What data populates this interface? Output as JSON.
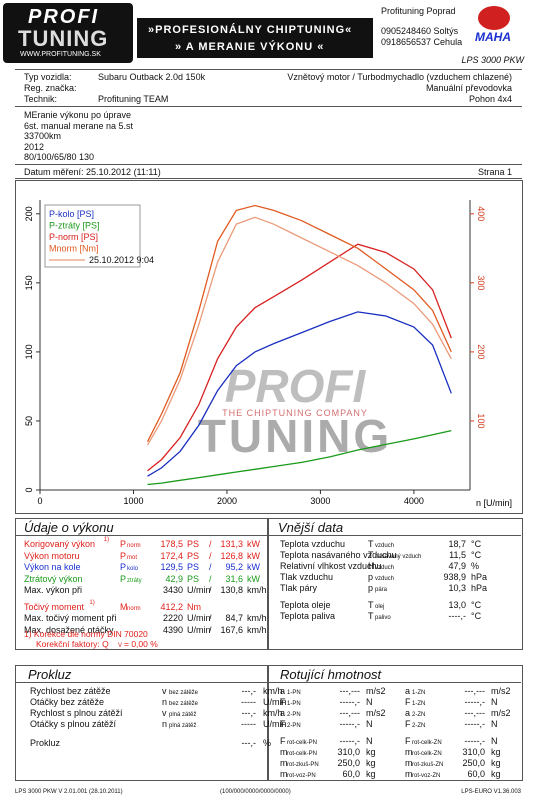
{
  "header": {
    "logo": [
      "PROFI",
      "TUNING",
      "WWW.PROFITUNING.SK"
    ],
    "banner": [
      "»PROFESIONÁLNY CHIPTUNING«",
      "» A MERANIE VÝKONU «"
    ],
    "company": [
      "Profituning Poprad",
      "0905248460 Soltýs",
      "0918656537 Cehula"
    ],
    "brand": "MAHA",
    "device": "LPS 3000 PKW"
  },
  "info": {
    "rows": [
      {
        "label": "Typ vozidla:",
        "value": "Subaru Outback 2.0d 150k",
        "right": "Vznětový motor / Turbodmychadlo (vzduchem chlazené)"
      },
      {
        "label": "Reg. značka:",
        "right": "Manuální převodovka"
      },
      {
        "label": "Technik:",
        "value": "Profituning TEAM",
        "right": "Pohon 4x4"
      }
    ],
    "notes": [
      "MEranie výkonu po úprave",
      "6st. manual merane na 5.st",
      "33700km",
      "2012",
      "80/100/65/80 130"
    ],
    "date": "Datum měření: 25.10.2012 (11:11)",
    "page": "Strana 1"
  },
  "watermark": [
    "PROFI",
    "THE CHIPTUNING COMPANY",
    "TUNING"
  ],
  "chart_data": {
    "type": "line",
    "xlabel": "n [U/min]",
    "x": [
      1150,
      1300,
      1500,
      1700,
      1900,
      2100,
      2300,
      2500,
      2800,
      3100,
      3400,
      3700,
      4000,
      4200,
      4400
    ],
    "series": [
      {
        "name": "P-kolo [PS]",
        "color": "#1a2fc0",
        "values": [
          10,
          16,
          28,
          47,
          72,
          90,
          100,
          106,
          114,
          122,
          129,
          126,
          118,
          105,
          70
        ]
      },
      {
        "name": "P-ztráty [PS]",
        "color": "#1a9a1a",
        "values": [
          4,
          5,
          7,
          9,
          11,
          13,
          15,
          17,
          20,
          24,
          29,
          33,
          37,
          40,
          43
        ]
      },
      {
        "name": "P-norm [PS]",
        "color": "#d82020",
        "values": [
          14,
          22,
          38,
          62,
          95,
          118,
          132,
          140,
          152,
          165,
          178,
          172,
          160,
          145,
          110
        ]
      },
      {
        "name": "Mnorm [Nm]",
        "color": "#e05a20",
        "axis": "y2",
        "values": [
          70,
          110,
          170,
          260,
          360,
          405,
          412,
          405,
          390,
          370,
          350,
          320,
          290,
          260,
          200
        ]
      },
      {
        "name": "25.10.2012 9:04",
        "color": "#eb9a7a",
        "axis": "y2",
        "values": [
          65,
          100,
          160,
          240,
          330,
          385,
          395,
          385,
          365,
          345,
          325,
          300,
          270,
          240,
          190
        ]
      }
    ],
    "xlim": [
      0,
      4600
    ],
    "xticks": [
      0,
      1000,
      2000,
      3000,
      4000
    ],
    "ylim": [
      0,
      210
    ],
    "yticks": [
      0,
      50,
      100,
      150,
      200
    ],
    "y2lim": [
      0,
      420
    ],
    "y2ticks": [
      100,
      200,
      300,
      400
    ],
    "grid": false,
    "legend": "top-left"
  },
  "performance": {
    "title": "Údaje o výkonu",
    "separator": "/",
    "rows": [
      {
        "label": "Korigovaný výkon",
        "note": "1)",
        "sym": "P",
        "sub": "norm",
        "v1": "178,5",
        "u1": "PS",
        "v2": "131,3",
        "u2": "kW",
        "color": "#e0201a"
      },
      {
        "label": "Výkon motoru",
        "sym": "P",
        "sub": "mot",
        "v1": "172,4",
        "u1": "PS",
        "v2": "126,8",
        "u2": "kW",
        "color": "#e0201a"
      },
      {
        "label": "Výkon na kole",
        "sym": "P",
        "sub": "kolo",
        "v1": "129,5",
        "u1": "PS",
        "v2": "95,2",
        "u2": "kW",
        "color": "#1a2fd0"
      },
      {
        "label": "Ztrátový výkon",
        "sym": "P",
        "sub": "ztráty",
        "v1": "42,9",
        "u1": "PS",
        "v2": "31,6",
        "u2": "kW",
        "color": "#1a9a1a"
      },
      {
        "label": "Max. výkon při",
        "v1": "3430",
        "u1": "U/min",
        "v2": "130,8",
        "u2": "km/h",
        "color": "#111"
      },
      {
        "label": "Točivý moment",
        "note": "1)",
        "sym": "M",
        "sub": "norm",
        "v1": "412,2",
        "u1": "Nm",
        "color": "#e0201a"
      },
      {
        "label": "Max. točivý moment při",
        "v1": "2220",
        "u1": "U/min",
        "v2": "84,7",
        "u2": "km/h",
        "color": "#111"
      },
      {
        "label": "Max. dosažené otáčky",
        "v1": "4390",
        "u1": "U/min",
        "v2": "167,6",
        "u2": "km/h",
        "color": "#111"
      }
    ],
    "footnotes": [
      "1) Korekce dle normy DIN 70020",
      "Korekční faktory: Q",
      "V",
      "= 0,00 %"
    ]
  },
  "external": {
    "title": "Vnější data",
    "groups": [
      [
        {
          "label": "Teplota vzduchu",
          "sym": "T",
          "sub": "vzduch",
          "value": "18,7",
          "unit": "°C"
        },
        {
          "label": "Teplota nasávaného vzduchu",
          "sym": "T",
          "sub": "nasávaný vzduch",
          "value": "11,5",
          "unit": "°C"
        },
        {
          "label": "Relativní vlhkost vzduchu",
          "sym": "H",
          "sub": "vzduch",
          "value": "47,9",
          "unit": "%"
        },
        {
          "label": "Tlak vzduchu",
          "sym": "p",
          "sub": "vzduch",
          "value": "938,9",
          "unit": "hPa"
        },
        {
          "label": "Tlak páry",
          "sym": "p",
          "sub": "pára",
          "value": "10,3",
          "unit": "hPa"
        }
      ],
      [
        {
          "label": "Teplota oleje",
          "sym": "T",
          "sub": "olej",
          "value": "13,0",
          "unit": "°C"
        },
        {
          "label": "Teplota paliva",
          "sym": "T",
          "sub": "palivo",
          "value": "----,-",
          "unit": "°C"
        }
      ]
    ]
  },
  "slip": {
    "title": "Prokluz",
    "rows": [
      {
        "label": "Rychlost bez zátěže",
        "sym": "v",
        "sub": "bez zátěže",
        "value": "---,-",
        "unit": "km/h"
      },
      {
        "label": "Otáčky bez zátěže",
        "sym": "n",
        "sub": "bez zátěže",
        "value": "-----",
        "unit": "U/min"
      },
      {
        "label": "Rychlost s plnou zátěží",
        "sym": "v",
        "sub": "plná zátěž",
        "value": "---,-",
        "unit": "km/h"
      },
      {
        "label": "Otáčky s plnou zátěží",
        "sym": "n",
        "sub": "plná zátěž",
        "value": "-----",
        "unit": "U/min"
      },
      {
        "label": "Prokluz",
        "value": "---,-",
        "unit": "%"
      }
    ]
  },
  "rotating": {
    "title": "Rotující hmotnost",
    "rows": [
      [
        {
          "sym": "a",
          "sub": "1-PN",
          "value": "---,---",
          "unit": "m/s2"
        },
        {
          "sym": "a",
          "sub": "1-ZN",
          "value": "---,---",
          "unit": "m/s2"
        }
      ],
      [
        {
          "sym": "F",
          "sub": "1-PN",
          "value": "-----,-",
          "unit": "N"
        },
        {
          "sym": "F",
          "sub": "1-ZN",
          "value": "-----,-",
          "unit": "N"
        }
      ],
      [
        {
          "sym": "a",
          "sub": "2-PN",
          "value": "---,---",
          "unit": "m/s2"
        },
        {
          "sym": "a",
          "sub": "2-ZN",
          "value": "---,---",
          "unit": "m/s2"
        }
      ],
      [
        {
          "sym": "F",
          "sub": "2-PN",
          "value": "-----,-",
          "unit": "N"
        },
        {
          "sym": "F",
          "sub": "2-ZN",
          "value": "-----,-",
          "unit": "N"
        }
      ],
      [
        {
          "sym": "F",
          "sub": "rot-celk-PN",
          "value": "-----,-",
          "unit": "N"
        },
        {
          "sym": "F",
          "sub": "rot-celk-ZN",
          "value": "-----,-",
          "unit": "N"
        }
      ],
      [
        {
          "sym": "m",
          "sub": "rot-celk-PN",
          "value": "310,0",
          "unit": "kg"
        },
        {
          "sym": "m",
          "sub": "rot-celk-ZN",
          "value": "310,0",
          "unit": "kg"
        }
      ],
      [
        {
          "sym": "m",
          "sub": "rot-zkuš-PN",
          "value": "250,0",
          "unit": "kg"
        },
        {
          "sym": "m",
          "sub": "rot-zkuš-ZN",
          "value": "250,0",
          "unit": "kg"
        }
      ],
      [
        {
          "sym": "m",
          "sub": "rot-voz-PN",
          "value": "60,0",
          "unit": "kg"
        },
        {
          "sym": "m",
          "sub": "rot-voz-ZN",
          "value": "60,0",
          "unit": "kg"
        }
      ]
    ]
  },
  "footer": [
    "LPS 3000 PKW V 2.01.001 (28.10.2011)",
    "(100/000/0000/0000/0000)",
    "LPS-EURO V1.36.003"
  ]
}
